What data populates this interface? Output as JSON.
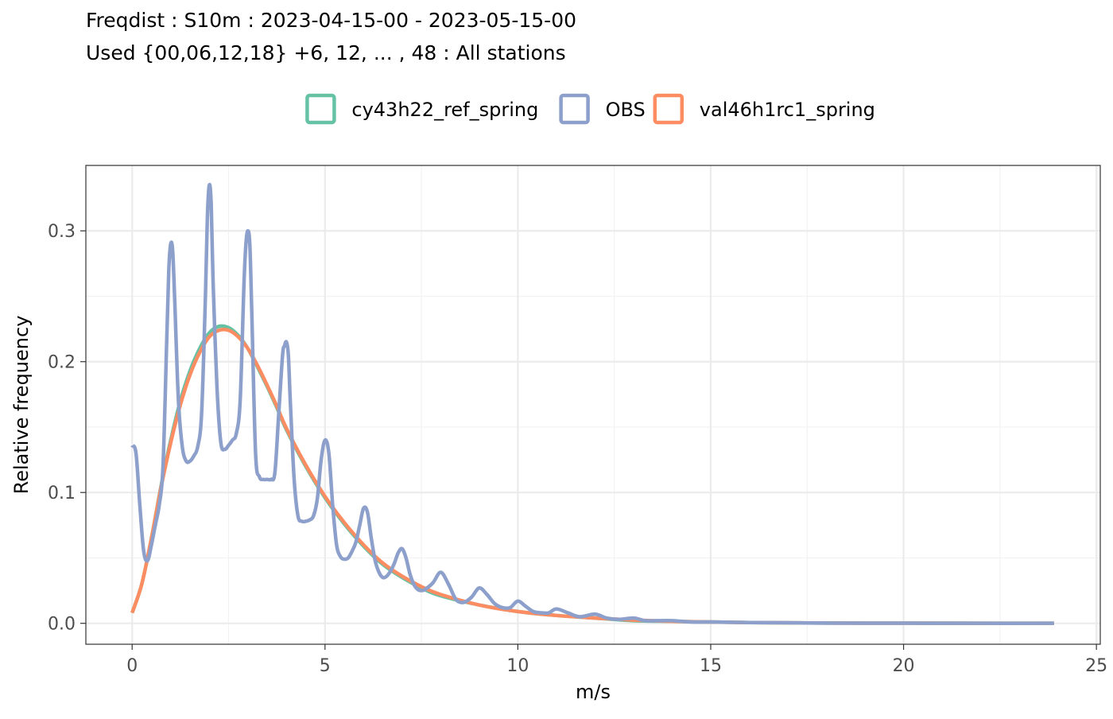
{
  "chart_data": {
    "type": "line",
    "title": "Freqdist : S10m : 2023-04-15-00 - 2023-05-15-00",
    "subtitle": "Used {00,06,12,18} +6, 12, ... , 48 : All stations",
    "xlabel": "m/s",
    "ylabel": "Relative frequency",
    "xlim": [
      -1.2,
      25.1
    ],
    "ylim": [
      -0.016,
      0.35
    ],
    "x_ticks": [
      0,
      5,
      10,
      15,
      20,
      25
    ],
    "x_tick_labels": [
      "0",
      "5",
      "10",
      "15",
      "20",
      "25"
    ],
    "y_ticks": [
      0.0,
      0.1,
      0.2,
      0.3
    ],
    "y_tick_labels": [
      "0.0",
      "0.1",
      "0.2",
      "0.3"
    ],
    "grid": true,
    "legend_position": "top",
    "series": [
      {
        "name": "cy43h22_ref_spring",
        "color": "#66c2a5",
        "x": [
          0,
          0.25,
          0.5,
          0.75,
          1,
          1.25,
          1.5,
          1.75,
          2,
          2.25,
          2.5,
          2.75,
          3,
          3.25,
          3.5,
          3.75,
          4,
          4.5,
          5,
          5.5,
          6,
          6.5,
          7,
          7.5,
          8,
          9,
          10,
          11,
          12,
          13,
          14,
          15,
          16,
          18,
          20,
          22,
          23.9
        ],
        "y": [
          0.008,
          0.03,
          0.065,
          0.105,
          0.14,
          0.17,
          0.193,
          0.21,
          0.222,
          0.227,
          0.226,
          0.22,
          0.21,
          0.196,
          0.181,
          0.165,
          0.148,
          0.12,
          0.096,
          0.076,
          0.059,
          0.045,
          0.035,
          0.027,
          0.021,
          0.014,
          0.009,
          0.006,
          0.004,
          0.002,
          0.0015,
          0.001,
          0.0006,
          0.0002,
          0.0001,
          5e-05,
          0.0
        ]
      },
      {
        "name": "OBS",
        "color": "#8da0cb",
        "x": [
          0,
          0.1,
          0.2,
          0.3,
          0.4,
          0.5,
          0.6,
          0.7,
          0.8,
          0.9,
          0.95,
          1.0,
          1.05,
          1.1,
          1.2,
          1.3,
          1.4,
          1.5,
          1.6,
          1.7,
          1.8,
          1.9,
          1.95,
          2.0,
          2.05,
          2.1,
          2.2,
          2.3,
          2.4,
          2.5,
          2.6,
          2.7,
          2.8,
          2.9,
          2.95,
          3.0,
          3.05,
          3.1,
          3.2,
          3.3,
          3.4,
          3.5,
          3.6,
          3.7,
          3.8,
          3.9,
          3.95,
          4.0,
          4.05,
          4.1,
          4.2,
          4.3,
          4.4,
          4.5,
          4.6,
          4.7,
          4.8,
          4.9,
          5.0,
          5.1,
          5.2,
          5.3,
          5.4,
          5.5,
          5.6,
          5.7,
          5.8,
          5.9,
          6.0,
          6.1,
          6.2,
          6.3,
          6.4,
          6.5,
          6.6,
          6.7,
          6.8,
          6.9,
          7.0,
          7.1,
          7.2,
          7.3,
          7.4,
          7.5,
          7.6,
          7.8,
          8.0,
          8.2,
          8.4,
          8.6,
          8.8,
          9.0,
          9.2,
          9.4,
          9.6,
          9.8,
          10.0,
          10.2,
          10.4,
          10.6,
          10.8,
          11.0,
          11.3,
          11.6,
          12.0,
          12.3,
          12.6,
          13.0,
          13.3,
          13.6,
          14.0,
          14.5,
          15.0,
          16.0,
          17.0,
          18.0,
          20.0,
          22.0,
          23.9
        ],
        "y": [
          0.136,
          0.13,
          0.09,
          0.055,
          0.048,
          0.06,
          0.075,
          0.09,
          0.12,
          0.22,
          0.27,
          0.29,
          0.285,
          0.25,
          0.17,
          0.135,
          0.124,
          0.124,
          0.128,
          0.135,
          0.16,
          0.25,
          0.31,
          0.335,
          0.32,
          0.26,
          0.18,
          0.138,
          0.133,
          0.136,
          0.14,
          0.145,
          0.17,
          0.26,
          0.29,
          0.3,
          0.29,
          0.24,
          0.13,
          0.112,
          0.11,
          0.11,
          0.11,
          0.115,
          0.16,
          0.205,
          0.212,
          0.215,
          0.205,
          0.17,
          0.11,
          0.082,
          0.078,
          0.078,
          0.079,
          0.082,
          0.095,
          0.125,
          0.14,
          0.13,
          0.09,
          0.06,
          0.051,
          0.049,
          0.05,
          0.055,
          0.062,
          0.075,
          0.088,
          0.085,
          0.065,
          0.048,
          0.039,
          0.035,
          0.036,
          0.04,
          0.046,
          0.054,
          0.057,
          0.05,
          0.038,
          0.03,
          0.026,
          0.025,
          0.026,
          0.031,
          0.039,
          0.03,
          0.018,
          0.016,
          0.02,
          0.027,
          0.022,
          0.015,
          0.012,
          0.012,
          0.017,
          0.013,
          0.009,
          0.008,
          0.008,
          0.011,
          0.008,
          0.005,
          0.007,
          0.004,
          0.003,
          0.004,
          0.002,
          0.002,
          0.002,
          0.001,
          0.001,
          0.0006,
          0.0004,
          0.0002,
          0.0001,
          0.0,
          0.0
        ]
      },
      {
        "name": "val46h1rc1_spring",
        "color": "#fc8d62",
        "x": [
          0,
          0.25,
          0.5,
          0.75,
          1,
          1.25,
          1.5,
          1.75,
          2,
          2.25,
          2.5,
          2.75,
          3,
          3.25,
          3.5,
          3.75,
          4,
          4.5,
          5,
          5.5,
          6,
          6.5,
          7,
          7.5,
          8,
          9,
          10,
          11,
          12,
          13,
          14,
          15,
          16,
          18,
          20,
          22,
          23.9
        ],
        "y": [
          0.008,
          0.03,
          0.065,
          0.104,
          0.138,
          0.167,
          0.19,
          0.207,
          0.219,
          0.224,
          0.224,
          0.219,
          0.21,
          0.197,
          0.182,
          0.166,
          0.149,
          0.121,
          0.097,
          0.077,
          0.06,
          0.046,
          0.036,
          0.028,
          0.022,
          0.014,
          0.009,
          0.006,
          0.004,
          0.0025,
          0.0015,
          0.001,
          0.0006,
          0.0002,
          0.0001,
          5e-05,
          0.0
        ]
      }
    ]
  }
}
